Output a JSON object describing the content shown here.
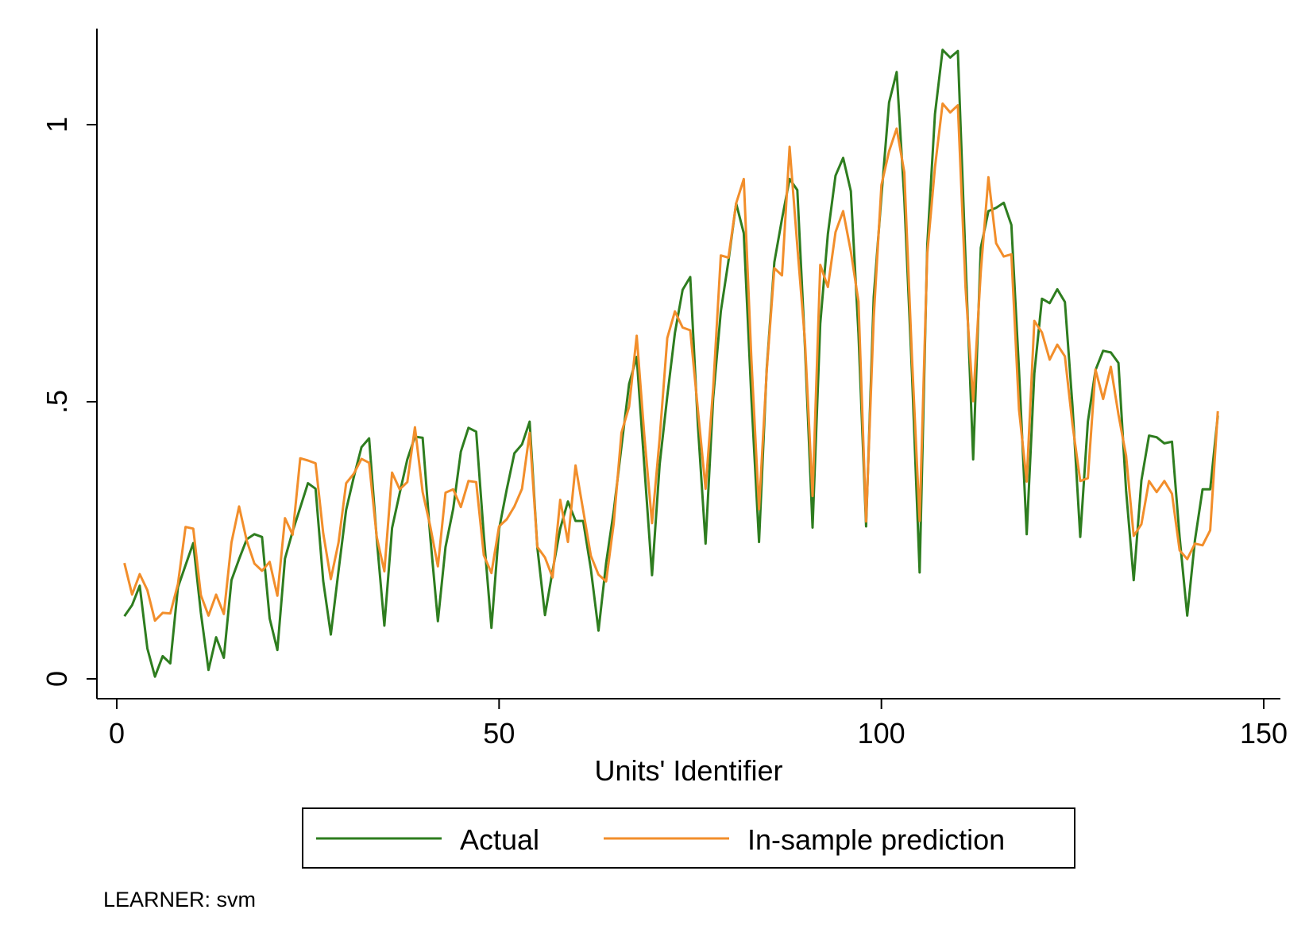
{
  "chart_data": {
    "type": "line",
    "title": "",
    "xlabel": "Units' Identifier",
    "ylabel": "",
    "xlim": [
      0,
      150
    ],
    "ylim": [
      0,
      1.15
    ],
    "xticks": [
      {
        "value": 0,
        "label": "0"
      },
      {
        "value": 50,
        "label": "50"
      },
      {
        "value": 100,
        "label": "100"
      },
      {
        "value": 150,
        "label": "150"
      }
    ],
    "yticks": [
      {
        "value": 0,
        "label": "0"
      },
      {
        "value": 0.5,
        "label": ".5"
      },
      {
        "value": 1,
        "label": "1"
      }
    ],
    "grid": false,
    "legend_position": "bottom",
    "note": "LEARNER: svm",
    "x_start": 1,
    "series": [
      {
        "name": "Actual",
        "color": "#2e7d1f",
        "values": [
          0.113,
          0.133,
          0.168,
          0.055,
          0.004,
          0.041,
          0.028,
          0.165,
          0.205,
          0.245,
          0.119,
          0.016,
          0.075,
          0.038,
          0.178,
          0.216,
          0.252,
          0.261,
          0.256,
          0.109,
          0.052,
          0.217,
          0.266,
          0.309,
          0.353,
          0.343,
          0.177,
          0.08,
          0.195,
          0.305,
          0.364,
          0.418,
          0.434,
          0.253,
          0.096,
          0.272,
          0.335,
          0.396,
          0.437,
          0.435,
          0.256,
          0.104,
          0.238,
          0.307,
          0.41,
          0.453,
          0.446,
          0.259,
          0.092,
          0.27,
          0.342,
          0.407,
          0.423,
          0.464,
          0.237,
          0.115,
          0.195,
          0.271,
          0.32,
          0.285,
          0.285,
          0.198,
          0.087,
          0.209,
          0.303,
          0.419,
          0.532,
          0.581,
          0.384,
          0.187,
          0.387,
          0.51,
          0.624,
          0.702,
          0.725,
          0.458,
          0.244,
          0.507,
          0.663,
          0.754,
          0.858,
          0.804,
          0.506,
          0.247,
          0.56,
          0.752,
          0.83,
          0.902,
          0.882,
          0.6,
          0.273,
          0.641,
          0.803,
          0.908,
          0.94,
          0.88,
          0.623,
          0.275,
          0.689,
          0.871,
          1.04,
          1.095,
          0.866,
          0.55,
          0.192,
          0.782,
          1.019,
          1.135,
          1.121,
          1.133,
          0.755,
          0.396,
          0.778,
          0.844,
          0.85,
          0.859,
          0.819,
          0.557,
          0.261,
          0.551,
          0.686,
          0.678,
          0.703,
          0.68,
          0.491,
          0.256,
          0.464,
          0.557,
          0.592,
          0.589,
          0.57,
          0.34,
          0.178,
          0.358,
          0.439,
          0.436,
          0.425,
          0.428,
          0.256,
          0.114,
          0.25,
          0.342,
          0.342,
          0.475
        ]
      },
      {
        "name": "In-sample prediction",
        "color": "#f28e2b",
        "values": [
          0.209,
          0.152,
          0.189,
          0.16,
          0.105,
          0.119,
          0.118,
          0.171,
          0.274,
          0.271,
          0.151,
          0.114,
          0.152,
          0.117,
          0.246,
          0.311,
          0.249,
          0.208,
          0.195,
          0.211,
          0.15,
          0.29,
          0.26,
          0.398,
          0.394,
          0.389,
          0.263,
          0.18,
          0.246,
          0.353,
          0.37,
          0.397,
          0.39,
          0.256,
          0.194,
          0.372,
          0.342,
          0.355,
          0.454,
          0.337,
          0.275,
          0.203,
          0.336,
          0.342,
          0.31,
          0.357,
          0.355,
          0.223,
          0.191,
          0.275,
          0.288,
          0.311,
          0.343,
          0.444,
          0.238,
          0.219,
          0.183,
          0.323,
          0.247,
          0.385,
          0.304,
          0.222,
          0.188,
          0.176,
          0.281,
          0.444,
          0.491,
          0.619,
          0.439,
          0.281,
          0.434,
          0.615,
          0.663,
          0.634,
          0.629,
          0.486,
          0.343,
          0.525,
          0.764,
          0.76,
          0.858,
          0.902,
          0.576,
          0.306,
          0.556,
          0.741,
          0.728,
          0.96,
          0.781,
          0.61,
          0.33,
          0.747,
          0.707,
          0.806,
          0.844,
          0.771,
          0.681,
          0.284,
          0.652,
          0.891,
          0.952,
          0.993,
          0.914,
          0.578,
          0.285,
          0.767,
          0.923,
          1.038,
          1.022,
          1.035,
          0.706,
          0.501,
          0.735,
          0.905,
          0.786,
          0.762,
          0.766,
          0.486,
          0.356,
          0.646,
          0.625,
          0.576,
          0.603,
          0.582,
          0.458,
          0.357,
          0.362,
          0.558,
          0.505,
          0.563,
          0.477,
          0.403,
          0.258,
          0.279,
          0.357,
          0.337,
          0.357,
          0.334,
          0.232,
          0.216,
          0.244,
          0.241,
          0.268,
          0.483
        ]
      }
    ]
  }
}
